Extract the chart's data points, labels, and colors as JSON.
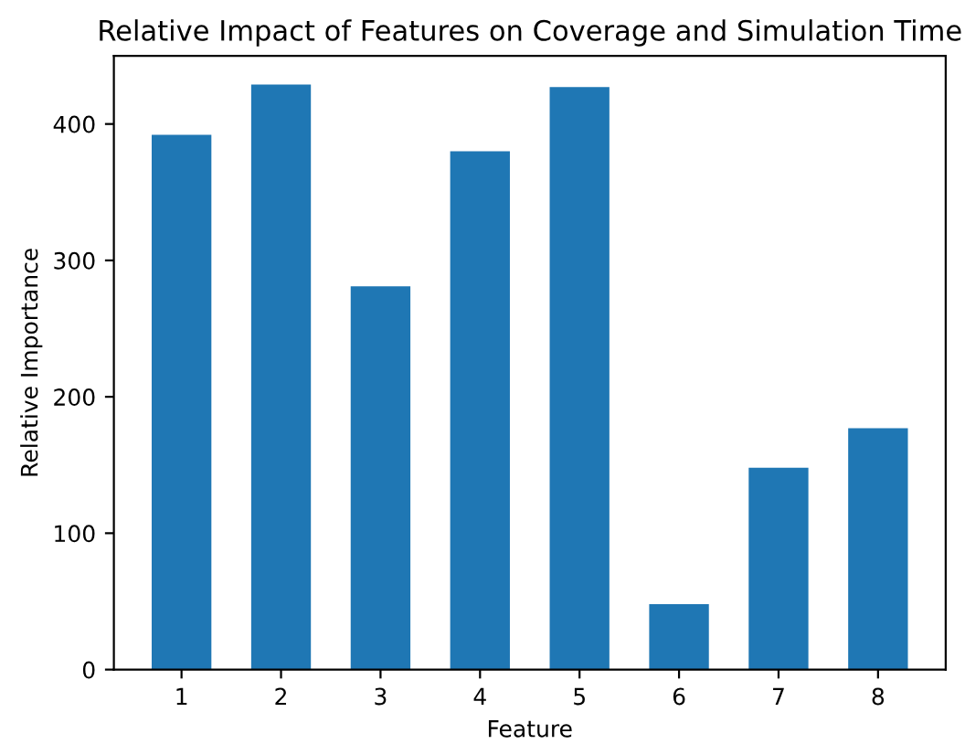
{
  "chart_data": {
    "type": "bar",
    "title": "Relative Impact of Features on Coverage and Simulation Time",
    "xlabel": "Feature",
    "ylabel": "Relative Importance",
    "categories": [
      "1",
      "2",
      "3",
      "4",
      "5",
      "6",
      "7",
      "8"
    ],
    "values": [
      392,
      429,
      281,
      380,
      427,
      48,
      148,
      177
    ],
    "color": "#1f77b4",
    "ylim": [
      0,
      450
    ],
    "yticks": [
      0,
      100,
      200,
      300,
      400
    ],
    "grid": false
  }
}
